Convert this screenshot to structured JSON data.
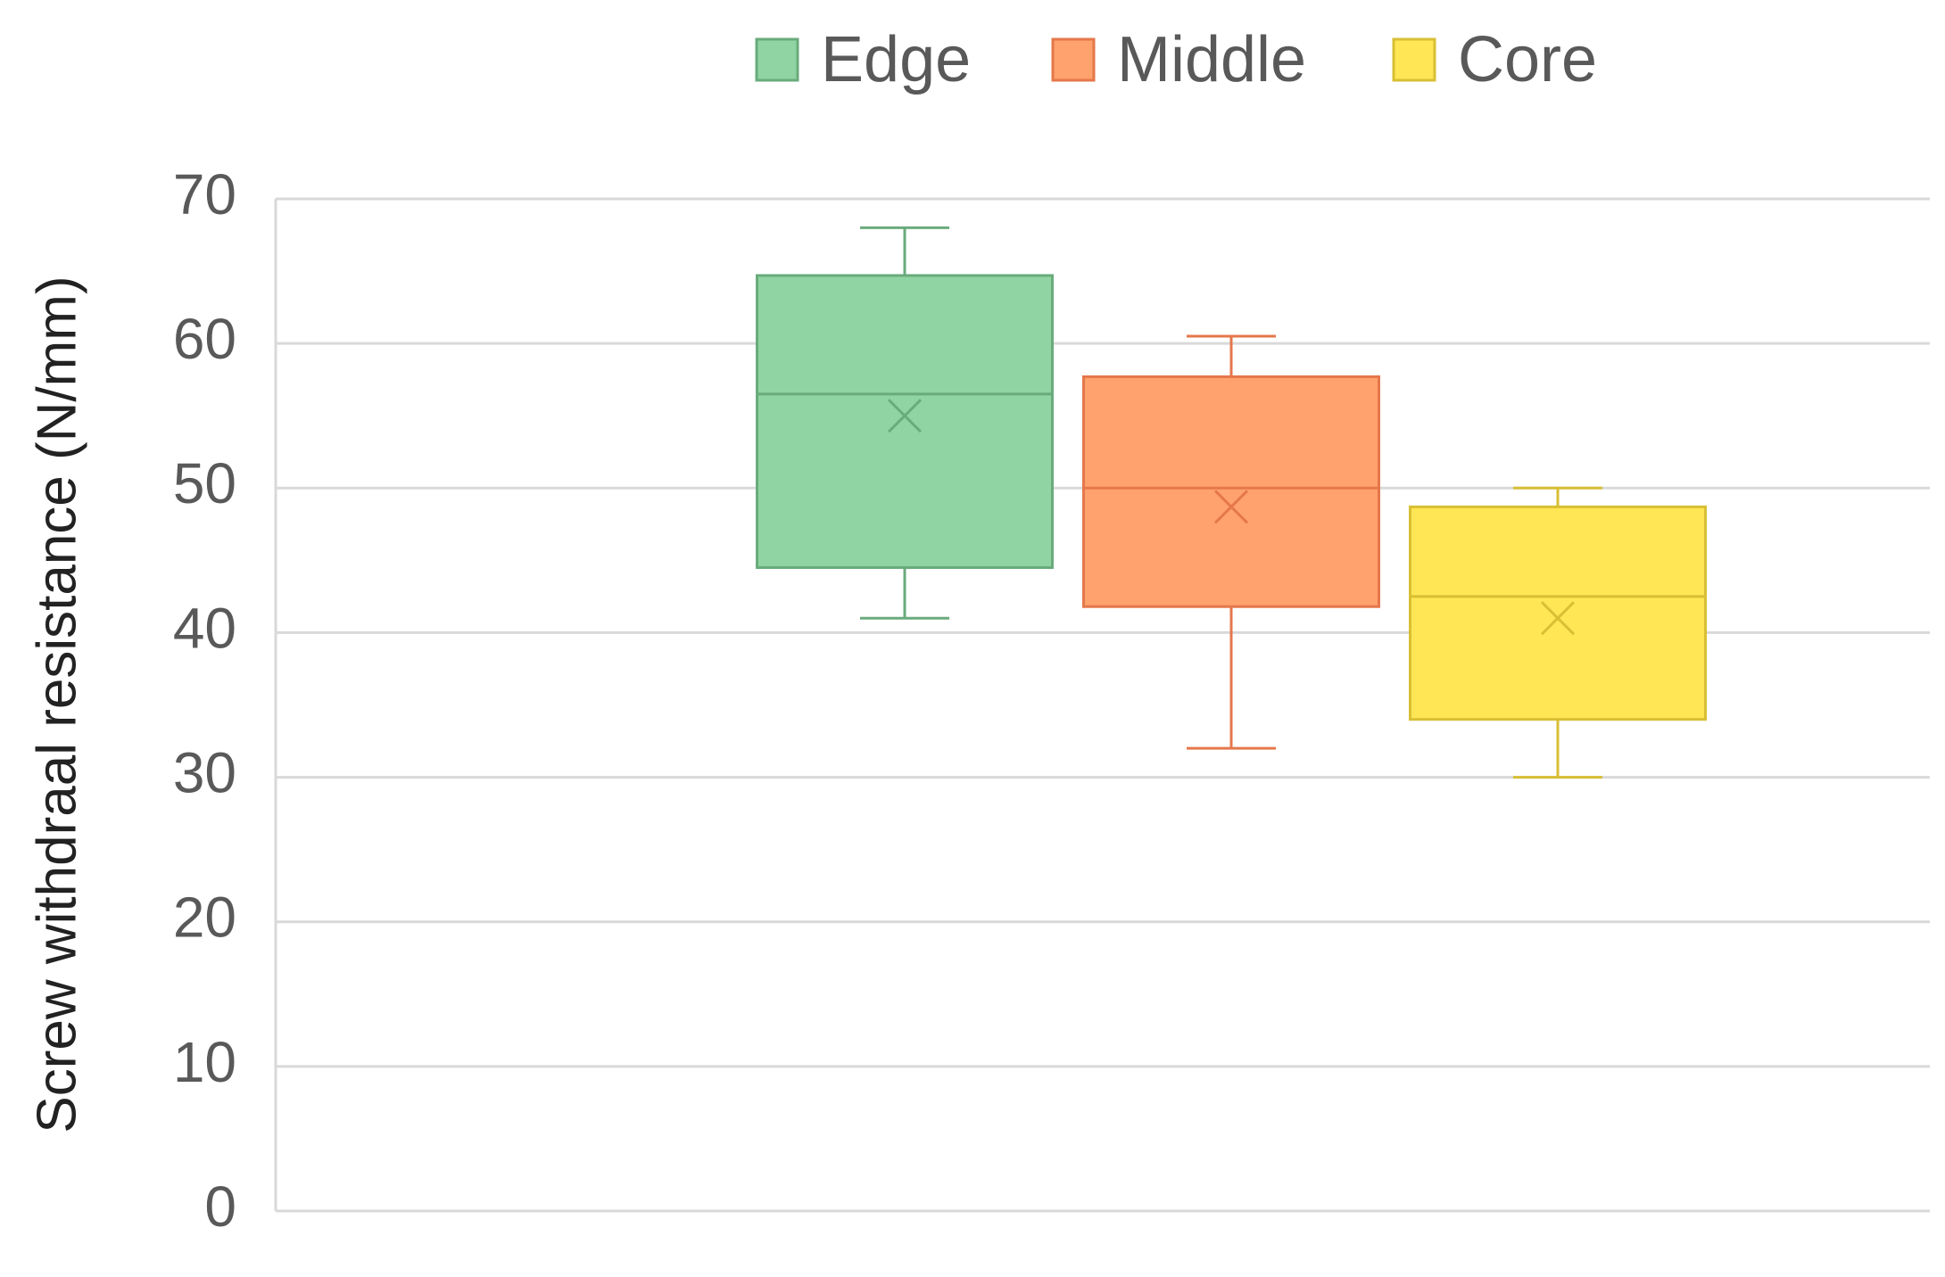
{
  "chart_data": {
    "type": "box",
    "ylabel": "Screw withdraal resistance (N/mm)",
    "ylim": [
      0,
      70
    ],
    "yticks": [
      0,
      10,
      20,
      30,
      40,
      50,
      60,
      70
    ],
    "grid": true,
    "legend": "top",
    "series": [
      {
        "name": "Edge",
        "color": "#91d4a4",
        "line_color": "#6aab7c",
        "min": 41,
        "q1": 44.5,
        "median": 56.5,
        "q3": 64.7,
        "max": 68,
        "mean": 55
      },
      {
        "name": "Middle",
        "color": "#ffa26e",
        "line_color": "#e5774b",
        "min": 32,
        "q1": 41.8,
        "median": 50,
        "q3": 57.7,
        "max": 60.5,
        "mean": 48.7
      },
      {
        "name": "Core",
        "color": "#ffe655",
        "line_color": "#d8bf34",
        "min": 30,
        "q1": 34,
        "median": 42.5,
        "q3": 48.7,
        "max": 50,
        "mean": 41
      }
    ]
  }
}
